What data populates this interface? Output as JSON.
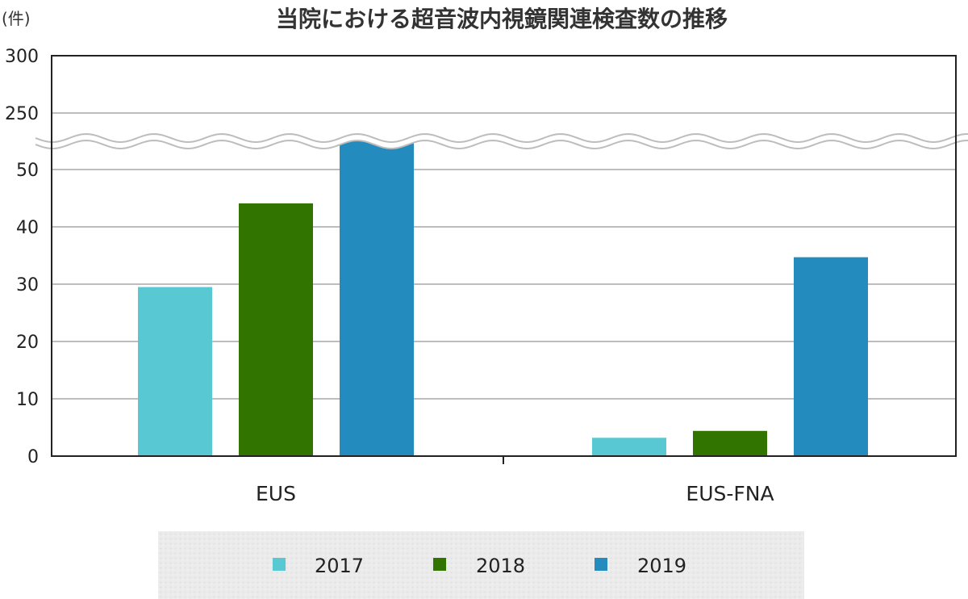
{
  "chart_data": {
    "type": "bar",
    "title": "当院における超音波内視鏡関連検査数の推移",
    "ylabel": "(件)",
    "categories": [
      "EUS",
      "EUS-FNA"
    ],
    "series": [
      {
        "name": "2017",
        "color": "#58c8d2",
        "values": [
          29.5,
          3.2
        ]
      },
      {
        "name": "2018",
        "color": "#317500",
        "values": [
          44.1,
          4.4
        ]
      },
      {
        "name": "2019",
        "color": "#238bbd",
        "values": [
          243,
          34.7
        ]
      }
    ],
    "y_ticks": [
      {
        "label": "0",
        "value": 0
      },
      {
        "label": "10",
        "value": 10
      },
      {
        "label": "20",
        "value": 20
      },
      {
        "label": "30",
        "value": 30
      },
      {
        "label": "40",
        "value": 40
      },
      {
        "label": "50",
        "value": 50
      },
      {
        "label": "250",
        "value": 250
      },
      {
        "label": "300",
        "value": 300
      }
    ],
    "axis_break": {
      "lower_max": 50,
      "upper_min": 250
    },
    "ylim": [
      0,
      300
    ],
    "grid": true,
    "legend_position": "bottom-center"
  }
}
